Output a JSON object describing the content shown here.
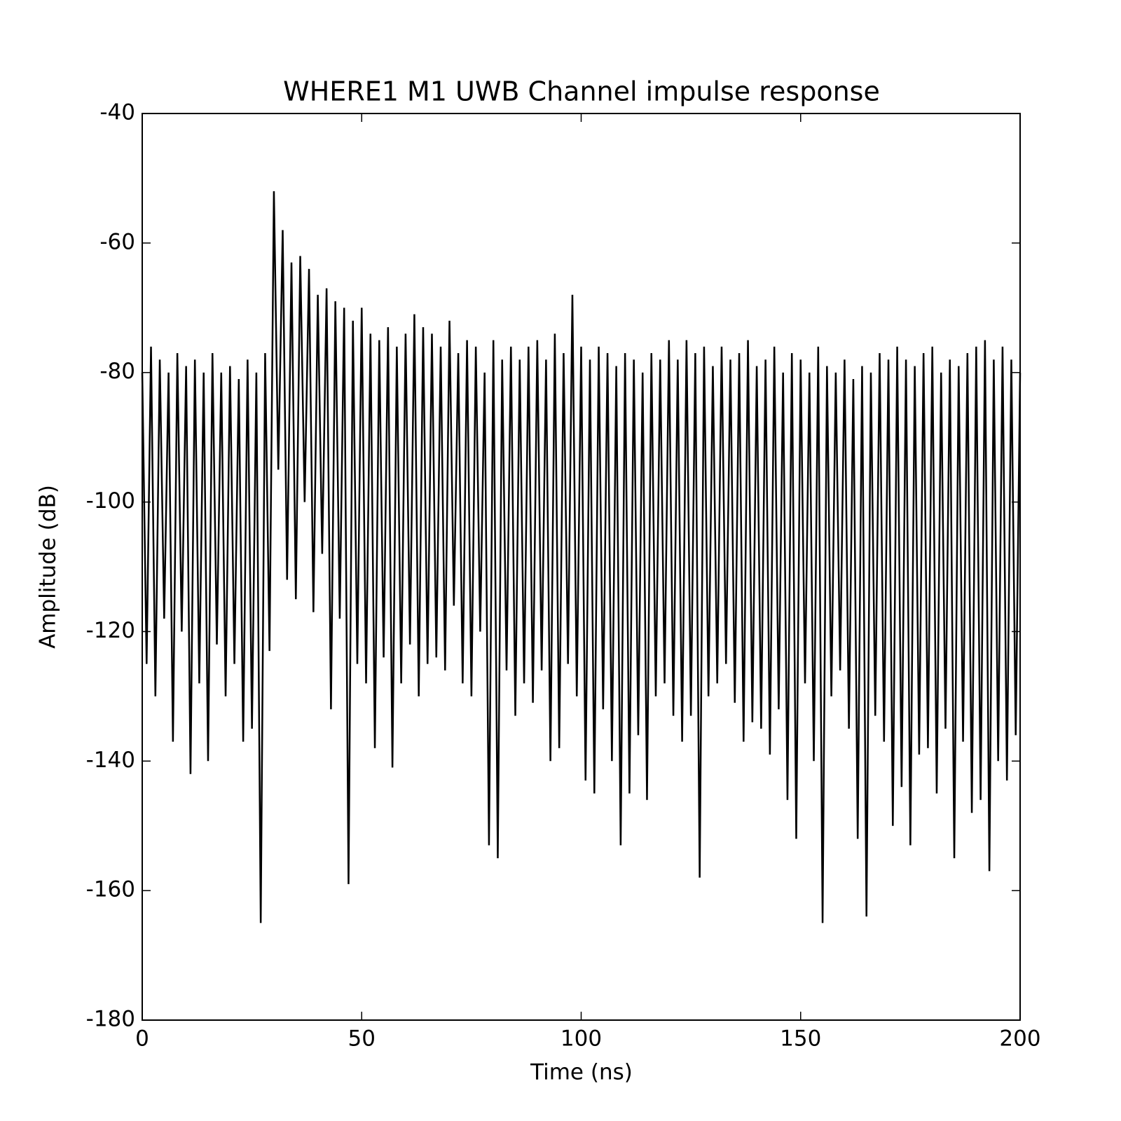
{
  "chart_data": {
    "type": "line",
    "title": "WHERE1 M1 UWB Channel impulse response",
    "x_label": "Time (ns)",
    "y_label": "Amplitude (dB)",
    "color": "#000000",
    "xlim": [
      0,
      200
    ],
    "xticks": [
      0,
      50,
      100,
      150,
      200
    ],
    "ylim": [
      -180,
      -40
    ],
    "yticks": [
      -180,
      -160,
      -140,
      -120,
      -100,
      -80,
      -60,
      -40
    ],
    "x": [
      0,
      1,
      2,
      3,
      4,
      5,
      6,
      7,
      8,
      9,
      10,
      11,
      12,
      13,
      14,
      15,
      16,
      17,
      18,
      19,
      20,
      21,
      22,
      23,
      24,
      25,
      26,
      27,
      28,
      29,
      30,
      31,
      32,
      33,
      34,
      35,
      36,
      37,
      38,
      39,
      40,
      41,
      42,
      43,
      44,
      45,
      46,
      47,
      48,
      49,
      50,
      51,
      52,
      53,
      54,
      55,
      56,
      57,
      58,
      59,
      60,
      61,
      62,
      63,
      64,
      65,
      66,
      67,
      68,
      69,
      70,
      71,
      72,
      73,
      74,
      75,
      76,
      77,
      78,
      79,
      80,
      81,
      82,
      83,
      84,
      85,
      86,
      87,
      88,
      89,
      90,
      91,
      92,
      93,
      94,
      95,
      96,
      97,
      98,
      99,
      100,
      101,
      102,
      103,
      104,
      105,
      106,
      107,
      108,
      109,
      110,
      111,
      112,
      113,
      114,
      115,
      116,
      117,
      118,
      119,
      120,
      121,
      122,
      123,
      124,
      125,
      126,
      127,
      128,
      129,
      130,
      131,
      132,
      133,
      134,
      135,
      136,
      137,
      138,
      139,
      140,
      141,
      142,
      143,
      144,
      145,
      146,
      147,
      148,
      149,
      150,
      151,
      152,
      153,
      154,
      155,
      156,
      157,
      158,
      159,
      160,
      161,
      162,
      163,
      164,
      165,
      166,
      167,
      168,
      169,
      170,
      171,
      172,
      173,
      174,
      175,
      176,
      177,
      178,
      179,
      180,
      181,
      182,
      183,
      184,
      185,
      186,
      187,
      188,
      189,
      190,
      191,
      192,
      193,
      194,
      195,
      196,
      197,
      198,
      199,
      200
    ],
    "values": [
      -80,
      -125,
      -76,
      -130,
      -78,
      -118,
      -80,
      -137,
      -77,
      -120,
      -79,
      -142,
      -78,
      -128,
      -80,
      -140,
      -77,
      -122,
      -80,
      -130,
      -79,
      -125,
      -81,
      -137,
      -78,
      -135,
      -80,
      -165,
      -77,
      -123,
      -52,
      -95,
      -58,
      -112,
      -63,
      -115,
      -62,
      -100,
      -64,
      -117,
      -68,
      -108,
      -67,
      -132,
      -69,
      -118,
      -70,
      -159,
      -72,
      -125,
      -70,
      -128,
      -74,
      -138,
      -75,
      -124,
      -73,
      -141,
      -76,
      -128,
      -74,
      -122,
      -71,
      -130,
      -73,
      -125,
      -74,
      -124,
      -76,
      -126,
      -72,
      -116,
      -77,
      -128,
      -75,
      -130,
      -76,
      -120,
      -80,
      -153,
      -75,
      -155,
      -78,
      -126,
      -76,
      -133,
      -78,
      -128,
      -76,
      -131,
      -75,
      -126,
      -78,
      -140,
      -74,
      -138,
      -77,
      -125,
      -68,
      -130,
      -76,
      -143,
      -78,
      -145,
      -76,
      -132,
      -77,
      -140,
      -79,
      -153,
      -77,
      -145,
      -78,
      -136,
      -80,
      -146,
      -77,
      -130,
      -78,
      -128,
      -75,
      -133,
      -78,
      -137,
      -75,
      -133,
      -77,
      -158,
      -76,
      -130,
      -79,
      -128,
      -76,
      -125,
      -78,
      -131,
      -77,
      -137,
      -75,
      -134,
      -79,
      -135,
      -78,
      -139,
      -76,
      -132,
      -80,
      -146,
      -77,
      -152,
      -78,
      -128,
      -80,
      -140,
      -76,
      -165,
      -79,
      -130,
      -80,
      -126,
      -78,
      -135,
      -81,
      -152,
      -79,
      -164,
      -80,
      -133,
      -77,
      -137,
      -78,
      -150,
      -76,
      -144,
      -78,
      -153,
      -79,
      -139,
      -77,
      -138,
      -76,
      -145,
      -80,
      -135,
      -78,
      -155,
      -79,
      -137,
      -77,
      -148,
      -76,
      -146,
      -75,
      -157,
      -78,
      -140,
      -76,
      -143,
      -78,
      -136,
      -80
    ]
  }
}
